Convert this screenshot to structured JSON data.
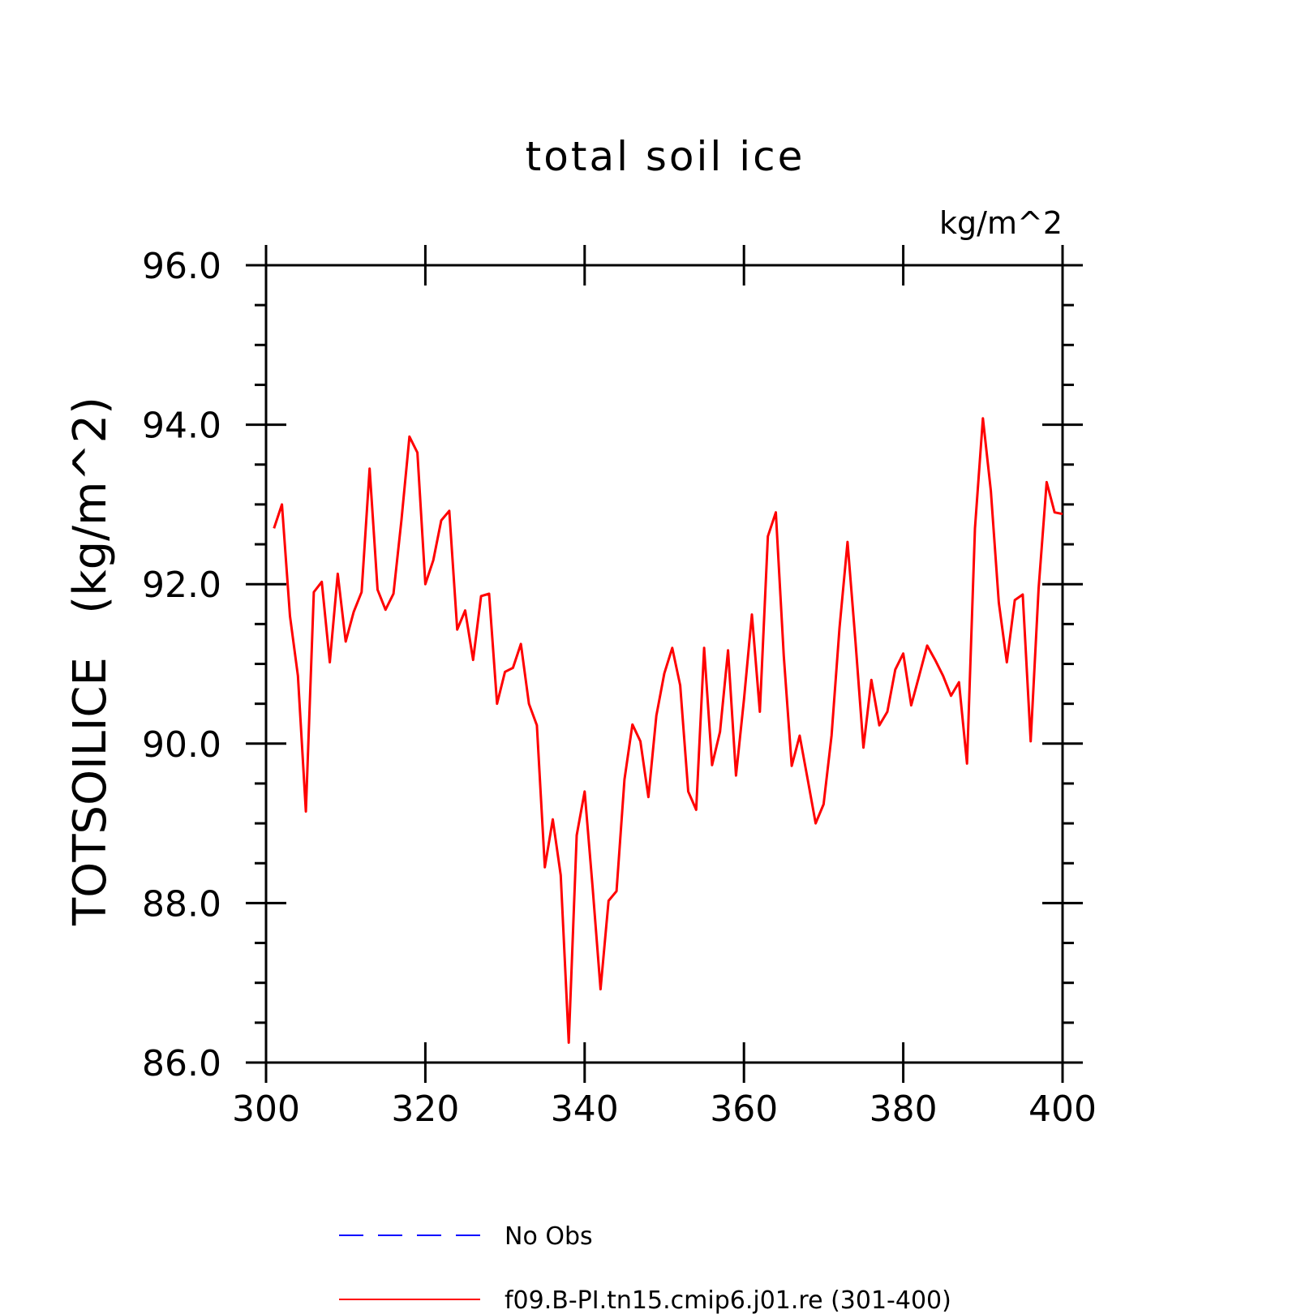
{
  "chart_data": {
    "type": "line",
    "title": "total soil ice",
    "units_label": "kg/m^2",
    "ylabel": "TOTSOILICE   (kg/m^2)",
    "xlabel": "",
    "xlim": [
      300,
      400
    ],
    "ylim": [
      86.0,
      96.0
    ],
    "x_ticks": [
      "300",
      "320",
      "340",
      "360",
      "380",
      "400"
    ],
    "y_ticks": [
      "86.0",
      "88.0",
      "90.0",
      "92.0",
      "94.0",
      "96.0"
    ],
    "grid": false,
    "legend_position": "bottom",
    "legend": [
      {
        "label": "No Obs",
        "color": "#0000ff",
        "style": "dashed"
      },
      {
        "label": "f09.B-PI.tn15.cmip6.j01.re (301-400)",
        "color": "#ff0000",
        "style": "solid"
      }
    ],
    "series": [
      {
        "name": "f09.B-PI.tn15.cmip6.j01.re (301-400)",
        "color": "#ff0000",
        "x": [
          301,
          302,
          303,
          304,
          305,
          306,
          307,
          308,
          309,
          310,
          311,
          312,
          313,
          314,
          315,
          316,
          317,
          318,
          319,
          320,
          321,
          322,
          323,
          324,
          325,
          326,
          327,
          328,
          329,
          330,
          331,
          332,
          333,
          334,
          335,
          336,
          337,
          338,
          339,
          340,
          341,
          342,
          343,
          344,
          345,
          346,
          347,
          348,
          349,
          350,
          351,
          352,
          353,
          354,
          355,
          356,
          357,
          358,
          359,
          360,
          361,
          362,
          363,
          364,
          365,
          366,
          367,
          368,
          369,
          370,
          371,
          372,
          373,
          374,
          375,
          376,
          377,
          378,
          379,
          380,
          381,
          382,
          383,
          384,
          385,
          386,
          387,
          388,
          389,
          390,
          391,
          392,
          393,
          394,
          395,
          396,
          397,
          398,
          399,
          400
        ],
        "values": [
          92.7,
          93.0,
          91.6,
          90.85,
          89.15,
          91.9,
          92.03,
          91.02,
          92.13,
          91.28,
          91.65,
          91.9,
          93.45,
          91.93,
          91.68,
          91.88,
          92.8,
          93.85,
          93.65,
          92.0,
          92.3,
          92.8,
          92.92,
          91.43,
          91.67,
          91.05,
          91.85,
          91.88,
          90.5,
          90.9,
          90.95,
          91.25,
          90.5,
          90.23,
          88.45,
          89.05,
          88.35,
          86.25,
          88.85,
          89.4,
          88.2,
          86.92,
          88.03,
          88.15,
          89.55,
          90.24,
          90.03,
          89.33,
          90.35,
          90.88,
          91.2,
          90.73,
          89.4,
          89.17,
          91.2,
          89.73,
          90.15,
          91.17,
          89.6,
          90.55,
          91.62,
          90.4,
          92.6,
          92.9,
          91.1,
          89.72,
          90.1,
          89.55,
          89.0,
          89.24,
          90.1,
          91.45,
          92.53,
          91.28,
          89.95,
          90.8,
          90.23,
          90.4,
          90.93,
          91.13,
          90.48,
          90.85,
          91.23,
          91.05,
          90.85,
          90.6,
          90.77,
          89.75,
          92.7,
          94.08,
          93.17,
          91.77,
          91.02,
          91.8,
          91.87,
          90.03,
          91.95,
          93.28,
          92.9,
          92.88
        ]
      }
    ]
  }
}
